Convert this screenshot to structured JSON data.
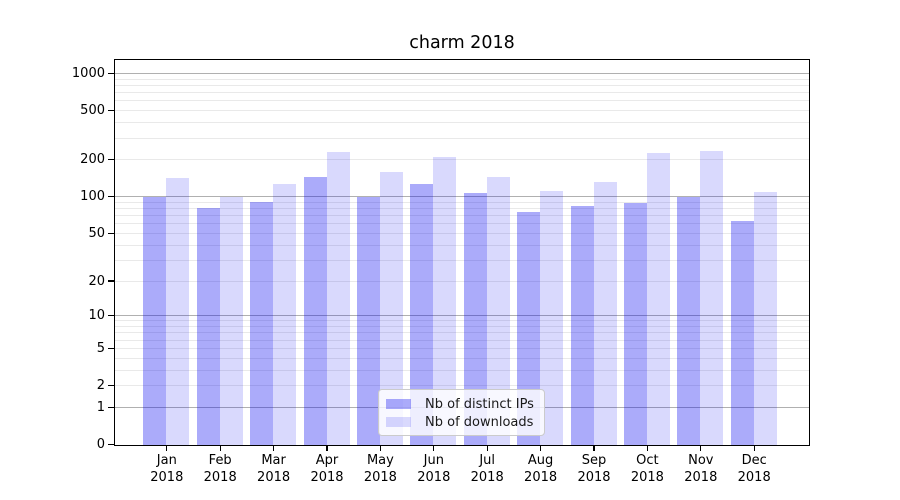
{
  "chart_data": {
    "type": "bar",
    "title": "charm 2018",
    "categories": [
      "Jan",
      "Feb",
      "Mar",
      "Apr",
      "May",
      "Jun",
      "Jul",
      "Aug",
      "Sep",
      "Oct",
      "Nov",
      "Dec"
    ],
    "x_tick_year": "2018",
    "series": [
      {
        "name": "Nb of distinct IPs",
        "values": [
          100,
          81,
          92,
          146,
          100,
          129,
          109,
          75,
          85,
          89,
          100,
          64
        ],
        "color": "rgba(0,0,240,0.33)",
        "approx_hex": "#aaaaf7"
      },
      {
        "name": "Nb of downloads",
        "values": [
          143,
          100,
          128,
          235,
          162,
          212,
          145,
          113,
          134,
          231,
          240,
          111
        ],
        "color": "rgba(0,0,240,0.15)",
        "approx_hex": "#d9d9f7"
      }
    ],
    "yscale": "log1p-symlog",
    "y_tick_labels": [
      "1000",
      "500",
      "200",
      "100",
      "50",
      "20",
      "10",
      "5",
      "2",
      "1",
      "0"
    ],
    "y_tick_values": [
      1000,
      500,
      200,
      100,
      50,
      20,
      10,
      5,
      2,
      1,
      0
    ],
    "ylim": [
      0,
      1290
    ],
    "grid": "both",
    "legend_position": "lower-center",
    "colors": {
      "grid_major": "#b0b0b0",
      "grid_minor": "#e9e9e9",
      "spine": "#000000",
      "background": "#ffffff",
      "text": "#000000"
    }
  }
}
